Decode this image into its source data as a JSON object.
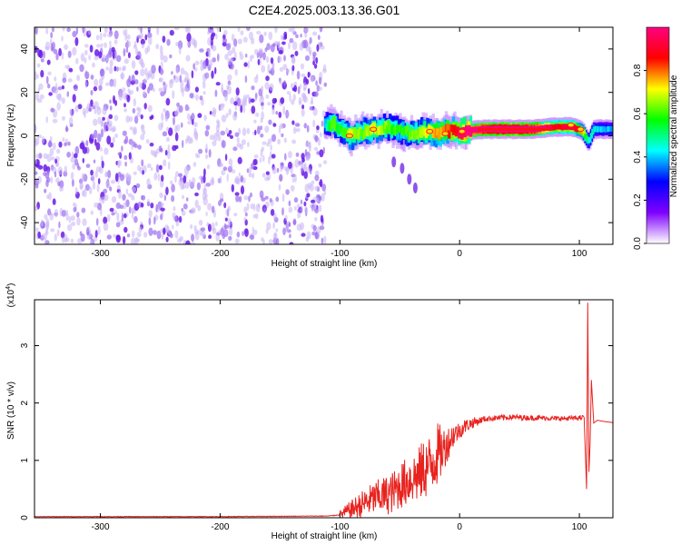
{
  "title": "C2E4.2025.003.13.36.G01",
  "chart_data": [
    {
      "type": "heatmap",
      "xlabel": "Height of straight line (km)",
      "ylabel": "Frequency (Hz)",
      "xlim": [
        -355,
        128
      ],
      "ylim": [
        -50,
        50
      ],
      "xticks": [
        -300,
        -200,
        -100,
        0,
        100
      ],
      "xtick_labels": [
        "-300",
        "-200",
        "-100",
        "0",
        "100"
      ],
      "yticks": [
        -40,
        -20,
        0,
        20,
        40
      ],
      "ytick_labels": [
        "-40",
        "-20",
        "0",
        "20",
        "40"
      ],
      "colorbar": {
        "label": "Normalized spectral amplitude",
        "range": [
          0,
          1
        ],
        "ticks": [
          0.0,
          0.2,
          0.4,
          0.6,
          0.8
        ],
        "tick_labels": [
          "0.0",
          "0.2",
          "0.4",
          "0.6",
          "0.8"
        ],
        "colors": [
          "#ffffff",
          "#7f00ff",
          "#0000ff",
          "#00ffff",
          "#00ff00",
          "#ffff00",
          "#ff0000",
          "#ff0080"
        ]
      },
      "noise_region": {
        "x_range": [
          -355,
          -112
        ],
        "freq_range": [
          -50,
          50
        ],
        "amplitude": 0.1
      },
      "signal_ridge": [
        {
          "x": -112,
          "f": 5,
          "amp": 0.35
        },
        {
          "x": -105,
          "f": 6,
          "amp": 0.5
        },
        {
          "x": -100,
          "f": 3,
          "amp": 0.45
        },
        {
          "x": -90,
          "f": 0,
          "amp": 0.55
        },
        {
          "x": -80,
          "f": 2,
          "amp": 0.5
        },
        {
          "x": -70,
          "f": 3,
          "amp": 0.55
        },
        {
          "x": -60,
          "f": 4,
          "amp": 0.5
        },
        {
          "x": -50,
          "f": 2,
          "amp": 0.45
        },
        {
          "x": -40,
          "f": 1,
          "amp": 0.5
        },
        {
          "x": -30,
          "f": 2,
          "amp": 0.55
        },
        {
          "x": -20,
          "f": 1,
          "amp": 0.6
        },
        {
          "x": -10,
          "f": 2,
          "amp": 0.65
        },
        {
          "x": 0,
          "f": 2,
          "amp": 0.75
        },
        {
          "x": 20,
          "f": 3,
          "amp": 0.95
        },
        {
          "x": 40,
          "f": 3,
          "amp": 1.0
        },
        {
          "x": 60,
          "f": 3,
          "amp": 0.95
        },
        {
          "x": 80,
          "f": 4,
          "amp": 0.7
        },
        {
          "x": 95,
          "f": 4,
          "amp": 0.75
        },
        {
          "x": 103,
          "f": 2,
          "amp": 0.6
        },
        {
          "x": 108,
          "f": -3,
          "amp": 0.35
        },
        {
          "x": 112,
          "f": 3,
          "amp": 0.35
        },
        {
          "x": 128,
          "f": 3,
          "amp": 0.3
        }
      ],
      "secondary_trace": [
        {
          "x": -55,
          "f": -12,
          "amp": 0.15
        },
        {
          "x": -48,
          "f": -15,
          "amp": 0.15
        },
        {
          "x": -42,
          "f": -20,
          "amp": 0.15
        },
        {
          "x": -37,
          "f": -24,
          "amp": 0.15
        }
      ]
    },
    {
      "type": "line",
      "xlabel": "Height of straight line (km)",
      "ylabel": "SNR (10 * v/v)",
      "y_multiplier": "(x10^4)",
      "xlim": [
        -355,
        128
      ],
      "ylim": [
        0,
        3.8
      ],
      "xticks": [
        -300,
        -200,
        -100,
        0,
        100
      ],
      "xtick_labels": [
        "-300",
        "-200",
        "-100",
        "0",
        "100"
      ],
      "yticks": [
        0,
        1,
        2,
        3
      ],
      "ytick_labels": [
        "0",
        "1",
        "2",
        "3"
      ],
      "series": [
        {
          "color": "#e8231f",
          "x": [
            -355,
            -200,
            -110,
            -100,
            -95,
            -90,
            -85,
            -80,
            -75,
            -70,
            -65,
            -60,
            -55,
            -50,
            -45,
            -40,
            -35,
            -30,
            -25,
            -20,
            -15,
            -10,
            -5,
            0,
            5,
            10,
            15,
            20,
            30,
            40,
            50,
            60,
            70,
            80,
            90,
            100,
            104,
            106,
            107,
            108,
            109,
            110,
            112,
            115,
            120,
            128
          ],
          "y": [
            0.02,
            0.02,
            0.03,
            0.05,
            0.1,
            0.15,
            0.2,
            0.25,
            0.3,
            0.35,
            0.38,
            0.4,
            0.45,
            0.55,
            0.62,
            0.7,
            0.72,
            0.85,
            0.9,
            1.1,
            1.15,
            1.3,
            1.45,
            1.52,
            1.6,
            1.65,
            1.68,
            1.72,
            1.74,
            1.75,
            1.75,
            1.74,
            1.74,
            1.73,
            1.73,
            1.74,
            1.75,
            0.5,
            3.75,
            0.8,
            1.3,
            2.4,
            1.65,
            1.7,
            1.68,
            1.66
          ]
        }
      ],
      "noise_envelope": [
        {
          "x": -100,
          "amp": 0.08
        },
        {
          "x": -80,
          "amp": 0.25
        },
        {
          "x": -60,
          "amp": 0.35
        },
        {
          "x": -40,
          "amp": 0.45
        },
        {
          "x": -20,
          "amp": 0.6
        },
        {
          "x": -10,
          "amp": 0.3
        },
        {
          "x": 0,
          "amp": 0.15
        },
        {
          "x": 20,
          "amp": 0.05
        },
        {
          "x": 100,
          "amp": 0.04
        }
      ]
    }
  ]
}
